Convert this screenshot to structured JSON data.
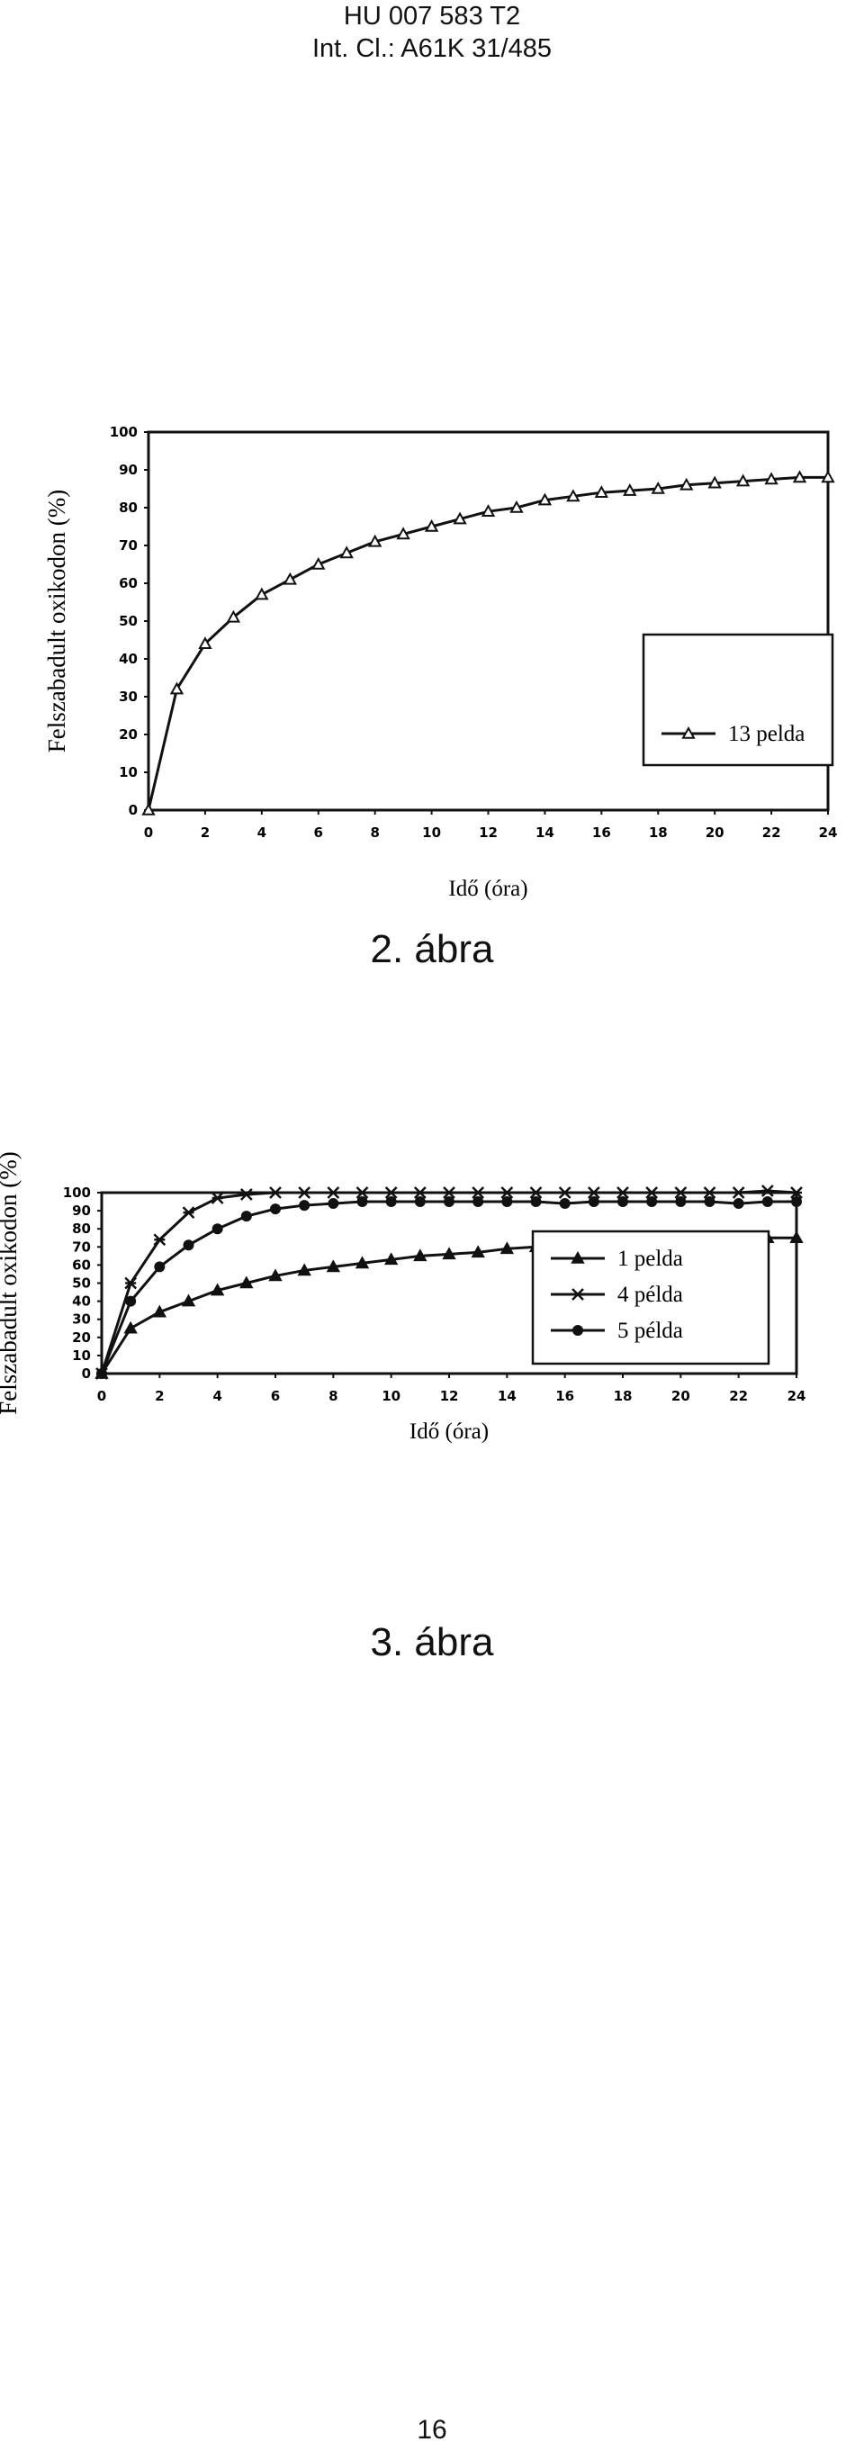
{
  "header": {
    "patent_number": "HU 007 583 T2",
    "classification": "Int. Cl.: A61K 31/485"
  },
  "page_number": "16",
  "chart_data": [
    {
      "type": "line",
      "caption": "2. ábra",
      "title": "",
      "xlabel": "Idő (óra)",
      "ylabel": "Felszabadult oxikodon (%)",
      "xlim": [
        0,
        24
      ],
      "ylim": [
        0,
        100
      ],
      "xticks": [
        "0",
        "2",
        "4",
        "6",
        "8",
        "10",
        "12",
        "14",
        "16",
        "18",
        "20",
        "22",
        "24"
      ],
      "yticks": [
        "0",
        "10",
        "20",
        "30",
        "40",
        "50",
        "60",
        "70",
        "80",
        "90",
        "100"
      ],
      "grid": false,
      "legend_position": "lower-right",
      "series": [
        {
          "name": "13 pelda",
          "marker": "triangle-open",
          "x": [
            0,
            1,
            2,
            3,
            4,
            5,
            6,
            7,
            8,
            9,
            10,
            11,
            12,
            13,
            14,
            15,
            16,
            17,
            18,
            19,
            20,
            21,
            22,
            23,
            24
          ],
          "values": [
            0,
            32,
            44,
            51,
            57,
            61,
            65,
            68,
            71,
            73,
            75,
            77,
            79,
            80,
            82,
            83,
            84,
            84.5,
            85,
            86,
            86.5,
            87,
            87.5,
            88,
            88
          ]
        }
      ]
    },
    {
      "type": "line",
      "caption": "3. ábra",
      "title": "",
      "xlabel": "Idő (óra)",
      "ylabel": "Felszabadult oxikodon (%)",
      "xlim": [
        0,
        24
      ],
      "ylim": [
        0,
        100
      ],
      "xticks": [
        "0",
        "2",
        "4",
        "6",
        "8",
        "10",
        "12",
        "14",
        "16",
        "18",
        "20",
        "22",
        "24"
      ],
      "yticks": [
        "0",
        "10",
        "20",
        "30",
        "40",
        "50",
        "60",
        "70",
        "80",
        "90",
        "100"
      ],
      "grid": false,
      "legend_position": "right",
      "series": [
        {
          "name": "1 pelda",
          "marker": "triangle",
          "x": [
            0,
            1,
            2,
            3,
            4,
            5,
            6,
            7,
            8,
            9,
            10,
            11,
            12,
            13,
            14,
            15,
            16,
            17,
            18,
            19,
            20,
            21,
            22,
            23,
            24
          ],
          "values": [
            0,
            25,
            34,
            40,
            46,
            50,
            54,
            57,
            59,
            61,
            63,
            65,
            66,
            67,
            69,
            70,
            71,
            72,
            72.5,
            73,
            73.5,
            74,
            74.5,
            75,
            75
          ]
        },
        {
          "name": "4 példa",
          "marker": "x",
          "x": [
            0,
            1,
            2,
            3,
            4,
            5,
            6,
            7,
            8,
            9,
            10,
            11,
            12,
            13,
            14,
            15,
            16,
            17,
            18,
            19,
            20,
            21,
            22,
            23,
            24
          ],
          "values": [
            0,
            50,
            74,
            89,
            97,
            99,
            100,
            100,
            100,
            100,
            100,
            100,
            100,
            100,
            100,
            100,
            100,
            100,
            100,
            100,
            100,
            100,
            100,
            101,
            100
          ]
        },
        {
          "name": "5 példa",
          "marker": "circle",
          "x": [
            0,
            1,
            2,
            3,
            4,
            5,
            6,
            7,
            8,
            9,
            10,
            11,
            12,
            13,
            14,
            15,
            16,
            17,
            18,
            19,
            20,
            21,
            22,
            23,
            24
          ],
          "values": [
            0,
            40,
            59,
            71,
            80,
            87,
            91,
            93,
            94,
            95,
            95,
            95,
            95,
            95,
            95,
            95,
            94,
            95,
            95,
            95,
            95,
            95,
            94,
            95,
            95
          ]
        }
      ]
    }
  ]
}
